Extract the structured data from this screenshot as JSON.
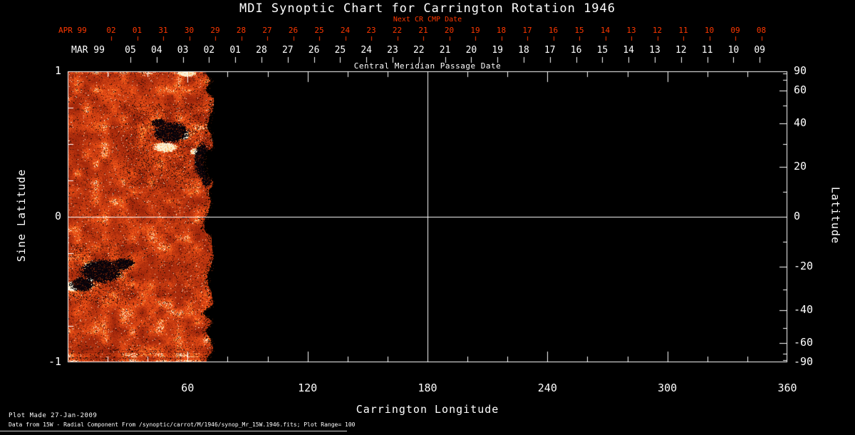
{
  "title": "MDI Synoptic Chart for Carrington Rotation 1946",
  "top_axis": {
    "next_cr_label": "Next CR CMP Date",
    "red_month": "APR 99",
    "red_dates": [
      "02",
      "01",
      "31",
      "30",
      "29",
      "28",
      "27",
      "26",
      "25",
      "24",
      "23",
      "22",
      "21",
      "20",
      "19",
      "18",
      "17",
      "16",
      "15",
      "14",
      "13",
      "12",
      "11",
      "10",
      "09",
      "08"
    ],
    "white_month": "MAR 99",
    "white_dates": [
      "05",
      "04",
      "03",
      "02",
      "01",
      "28",
      "27",
      "26",
      "25",
      "24",
      "23",
      "22",
      "21",
      "20",
      "19",
      "18",
      "17",
      "16",
      "15",
      "14",
      "13",
      "12",
      "11",
      "10",
      "09"
    ],
    "axis_title": "Central Meridian Passage Date"
  },
  "left_axis": {
    "label": "Sine Latitude"
  },
  "right_axis": {
    "label": "Latitude"
  },
  "bottom_axis": {
    "label": "Carrington Longitude"
  },
  "footer": {
    "made": "Plot Made 27-Jan-2009",
    "source": "Data from 15W - Radial Component From /synoptic/carrot/M/1946/synop_Mr_15W.1946.fits; Plot Range= 100"
  },
  "colors": {
    "background": "#000000",
    "foreground": "#ffffff",
    "accent_red": "#ff3800",
    "magnetogram_base": "#d84a10",
    "magnetogram_negative": "#05030a",
    "magnetogram_positive": "#fff0d2"
  },
  "chart_data": {
    "type": "heatmap",
    "title": "MDI Synoptic Chart for Carrington Rotation 1946",
    "xlabel": "Carrington Longitude",
    "ylabel_left": "Sine Latitude",
    "ylabel_right": "Latitude",
    "xlim": [
      0,
      360
    ],
    "ylim_sine": [
      -1,
      1
    ],
    "x_ticks": [
      60,
      120,
      180,
      240,
      300,
      360
    ],
    "x_minor_step": 20,
    "left_ticks": [
      1,
      0,
      -1
    ],
    "right_ticks_deg": [
      90,
      60,
      40,
      20,
      0,
      -20,
      -40,
      -60,
      -90
    ],
    "right_minor_step_deg": 10,
    "plot_range_gauss": 100,
    "data_extent_longitude": [
      0,
      72
    ],
    "crosshair": {
      "longitude": 180,
      "sine_latitude": 0
    },
    "legend": "none",
    "grid": "off",
    "active_regions": [
      {
        "lon": 51.7,
        "sine_lat": 0.583,
        "rlon": 8.6,
        "rsin": 0.069,
        "polarity": "negative"
      },
      {
        "lon": 45.3,
        "sine_lat": 0.647,
        "rlon": 3.6,
        "rsin": 0.029,
        "polarity": "negative"
      },
      {
        "lon": 48.8,
        "sine_lat": 0.48,
        "rlon": 5.7,
        "rsin": 0.034,
        "polarity": "positive"
      },
      {
        "lon": 57.4,
        "sine_lat": 0.559,
        "rlon": 2.9,
        "rsin": 0.025,
        "polarity": "positive"
      },
      {
        "lon": 67.0,
        "sine_lat": 0.387,
        "rlon": 3.6,
        "rsin": 0.123,
        "polarity": "negative"
      },
      {
        "lon": 69.5,
        "sine_lat": 0.265,
        "rlon": 2.5,
        "rsin": 0.059,
        "polarity": "negative"
      },
      {
        "lon": 63.1,
        "sine_lat": 0.451,
        "rlon": 1.8,
        "rsin": 0.02,
        "polarity": "positive"
      },
      {
        "lon": 59.5,
        "sine_lat": 0.985,
        "rlon": 4.3,
        "rsin": 0.02,
        "polarity": "positive"
      },
      {
        "lon": 16.8,
        "sine_lat": -0.373,
        "rlon": 10.0,
        "rsin": 0.078,
        "polarity": "negative"
      },
      {
        "lon": 26.7,
        "sine_lat": -0.324,
        "rlon": 4.3,
        "rsin": 0.039,
        "polarity": "negative"
      },
      {
        "lon": 7.1,
        "sine_lat": -0.461,
        "rlon": 5.7,
        "rsin": 0.049,
        "polarity": "negative"
      },
      {
        "lon": 2.9,
        "sine_lat": -0.475,
        "rlon": 3.9,
        "rsin": 0.034,
        "polarity": "positive"
      },
      {
        "lon": 11.4,
        "sine_lat": -0.426,
        "rlon": 1.8,
        "rsin": 0.02,
        "polarity": "positive"
      },
      {
        "lon": 30.3,
        "sine_lat": -0.314,
        "rlon": 2.9,
        "rsin": 0.025,
        "polarity": "negative"
      }
    ],
    "speckle_zones": [
      {
        "lon": [
          28,
          72
        ],
        "sine_lat": [
          0.2,
          0.78
        ],
        "strength": 0.5
      },
      {
        "lon": [
          0,
          33
        ],
        "sine_lat": [
          -0.6,
          -0.18
        ],
        "strength": 0.6
      },
      {
        "lon": [
          0,
          73
        ],
        "sine_lat": [
          -1.0,
          -0.88
        ],
        "strength": 0.3
      }
    ]
  }
}
